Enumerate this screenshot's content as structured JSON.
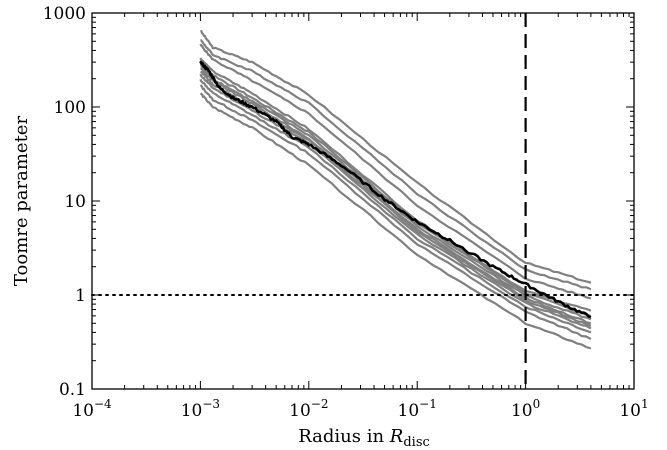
{
  "chart_data": {
    "type": "line",
    "title": "",
    "xlabel": {
      "prefix": "Radius in ",
      "symbol": "R",
      "subscript": "disc"
    },
    "ylabel": "Toomre parameter",
    "x_scale": "log",
    "y_scale": "log",
    "xlim": [
      0.0001,
      10
    ],
    "ylim": [
      0.1,
      1000
    ],
    "x_tick_labels": [
      {
        "value": 0.0001,
        "base": "10",
        "exp": "−4"
      },
      {
        "value": 0.001,
        "base": "10",
        "exp": "−3"
      },
      {
        "value": 0.01,
        "base": "10",
        "exp": "−2"
      },
      {
        "value": 0.1,
        "base": "10",
        "exp": "−1"
      },
      {
        "value": 1,
        "base": "10",
        "exp": "0"
      },
      {
        "value": 10,
        "base": "10",
        "exp": "1"
      }
    ],
    "y_tick_labels": [
      {
        "value": 1000,
        "label": "1000"
      },
      {
        "value": 100,
        "label": "100"
      },
      {
        "value": 10,
        "label": "10"
      },
      {
        "value": 1,
        "label": "1"
      },
      {
        "value": 0.1,
        "label": "0.1"
      }
    ],
    "reference_lines": [
      {
        "orientation": "vertical",
        "at": 1,
        "style": "dashed",
        "color": "#000000"
      },
      {
        "orientation": "horizontal",
        "at": 1,
        "style": "dotted",
        "color": "#000000"
      }
    ],
    "series_style": {
      "realization_color": "#808080",
      "median_color": "#000000"
    },
    "series": [
      {
        "role": "realization",
        "x": [
          0.001,
          0.0013,
          0.003,
          0.01,
          0.1,
          1,
          4
        ],
        "y": [
          650,
          430,
          300,
          135,
          15.5,
          2.2,
          1.35
        ]
      },
      {
        "role": "realization",
        "x": [
          0.001,
          0.0013,
          0.003,
          0.01,
          0.1,
          1,
          4
        ],
        "y": [
          520,
          360,
          240,
          110,
          12,
          1.85,
          1.15
        ]
      },
      {
        "role": "realization",
        "x": [
          0.001,
          0.0013,
          0.003,
          0.01,
          0.1,
          1,
          4
        ],
        "y": [
          460,
          320,
          190,
          85,
          9,
          1.5,
          0.92
        ]
      },
      {
        "role": "realization",
        "x": [
          0.001,
          0.0013,
          0.003,
          0.01,
          0.1,
          1,
          4
        ],
        "y": [
          330,
          240,
          140,
          58,
          6.2,
          1.1,
          0.68
        ]
      },
      {
        "role": "realization",
        "x": [
          0.001,
          0.0013,
          0.003,
          0.01,
          0.1,
          1,
          4
        ],
        "y": [
          300,
          220,
          125,
          54,
          5.8,
          1.05,
          0.6
        ]
      },
      {
        "role": "realization",
        "x": [
          0.001,
          0.0013,
          0.003,
          0.01,
          0.1,
          1,
          4
        ],
        "y": [
          280,
          200,
          115,
          50,
          5.4,
          0.98,
          0.55
        ]
      },
      {
        "role": "realization",
        "x": [
          0.001,
          0.0013,
          0.003,
          0.01,
          0.1,
          1,
          4
        ],
        "y": [
          260,
          190,
          108,
          46,
          5.0,
          0.92,
          0.5
        ]
      },
      {
        "role": "realization",
        "x": [
          0.001,
          0.0013,
          0.003,
          0.01,
          0.1,
          1,
          4
        ],
        "y": [
          240,
          175,
          100,
          44,
          4.7,
          0.88,
          0.47
        ]
      },
      {
        "role": "realization",
        "x": [
          0.001,
          0.0013,
          0.003,
          0.01,
          0.1,
          1,
          4
        ],
        "y": [
          220,
          160,
          92,
          41,
          4.4,
          0.82,
          0.44
        ]
      },
      {
        "role": "realization",
        "x": [
          0.001,
          0.0013,
          0.003,
          0.01,
          0.1,
          1,
          4
        ],
        "y": [
          195,
          140,
          82,
          37,
          4.0,
          0.75,
          0.4
        ]
      },
      {
        "role": "realization",
        "x": [
          0.001,
          0.0013,
          0.003,
          0.01,
          0.1,
          1,
          4
        ],
        "y": [
          170,
          120,
          72,
          32,
          3.5,
          0.66,
          0.34
        ]
      },
      {
        "role": "realization",
        "x": [
          0.001,
          0.0013,
          0.003,
          0.01,
          0.1,
          1,
          4
        ],
        "y": [
          140,
          100,
          60,
          24,
          2.7,
          0.5,
          0.27
        ]
      },
      {
        "role": "median",
        "x": [
          0.001,
          0.0012,
          0.0015,
          0.002,
          0.003,
          0.005,
          0.007,
          0.01,
          0.02,
          0.05,
          0.1,
          0.2,
          0.5,
          1,
          2,
          4
        ],
        "y": [
          300,
          240,
          160,
          125,
          100,
          70,
          48,
          40,
          24,
          10.5,
          6.0,
          3.8,
          2.0,
          1.3,
          0.85,
          0.58
        ]
      }
    ]
  }
}
